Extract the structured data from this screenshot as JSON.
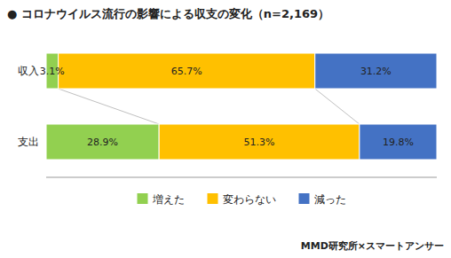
{
  "chart_data": {
    "type": "bar",
    "orientation": "horizontal",
    "stacked": true,
    "title": "● コロナウイルス流行の影響による収支の変化（n=2,169）",
    "categories": [
      "収入",
      "支出"
    ],
    "series": [
      {
        "name": "増えた",
        "color": "#92d050",
        "values": [
          3.1,
          28.9
        ],
        "value_labels": [
          "3.1%",
          "28.9%"
        ]
      },
      {
        "name": "変わらない",
        "color": "#ffc000",
        "values": [
          65.7,
          51.3
        ],
        "value_labels": [
          "65.7%",
          "51.3%"
        ]
      },
      {
        "name": "減った",
        "color": "#4472c4",
        "values": [
          31.2,
          19.8
        ],
        "value_labels": [
          "31.2%",
          "19.8%"
        ]
      }
    ],
    "xlim": [
      0,
      100
    ],
    "xticks": [],
    "data_labels": true,
    "tick_labels": "y",
    "grid": false,
    "legend": "bottom",
    "annotations": [
      "MMD研究所×スマートアンサー"
    ]
  }
}
